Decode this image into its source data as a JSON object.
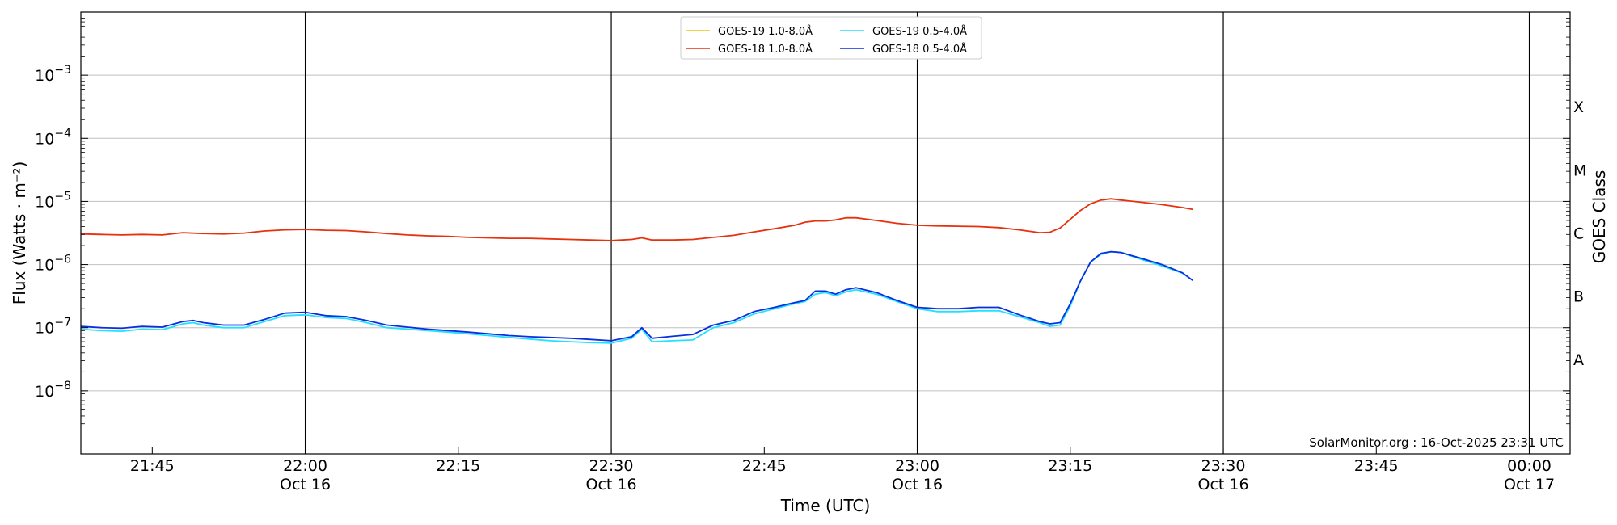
{
  "chart_data": {
    "type": "line",
    "xlabel": "Time (UTC)",
    "ylabel": "Flux (Watts · m⁻²)",
    "y2label": "GOES Class",
    "yscale": "log",
    "xlim": [
      "21:38",
      "24:04"
    ],
    "ylim": [
      1e-09,
      0.01
    ],
    "grid": "horizontal",
    "legend_position": "top-center",
    "credit": "SolarMonitor.org : 16-Oct-2025 23:31 UTC",
    "x_ticks": [
      {
        "time": "21:45",
        "label": "21:45",
        "date": ""
      },
      {
        "time": "22:00",
        "label": "22:00",
        "date": "Oct 16"
      },
      {
        "time": "22:15",
        "label": "22:15",
        "date": ""
      },
      {
        "time": "22:30",
        "label": "22:30",
        "date": "Oct 16"
      },
      {
        "time": "22:45",
        "label": "22:45",
        "date": ""
      },
      {
        "time": "23:00",
        "label": "23:00",
        "date": "Oct 16"
      },
      {
        "time": "23:15",
        "label": "23:15",
        "date": ""
      },
      {
        "time": "23:30",
        "label": "23:30",
        "date": "Oct 16"
      },
      {
        "time": "23:45",
        "label": "23:45",
        "date": ""
      },
      {
        "time": "24:00",
        "label": "00:00",
        "date": "Oct 17"
      }
    ],
    "day_lines": [
      "22:00",
      "22:30",
      "23:00",
      "23:30",
      "24:00"
    ],
    "y_ticks": [
      {
        "value": 1e-08,
        "label": "10",
        "exp": "−8"
      },
      {
        "value": 1e-07,
        "label": "10",
        "exp": "−7"
      },
      {
        "value": 1e-06,
        "label": "10",
        "exp": "−6"
      },
      {
        "value": 1e-05,
        "label": "10",
        "exp": "−5"
      },
      {
        "value": 0.0001,
        "label": "10",
        "exp": "−4"
      },
      {
        "value": 0.001,
        "label": "10",
        "exp": "−3"
      }
    ],
    "goes_classes": [
      {
        "label": "A",
        "value": 3.16e-08
      },
      {
        "label": "B",
        "value": 3.16e-07
      },
      {
        "label": "C",
        "value": 3.16e-06
      },
      {
        "label": "M",
        "value": 3.16e-05
      },
      {
        "label": "X",
        "value": 0.000316
      }
    ],
    "series": [
      {
        "name": "GOES-19 1.0-8.0Å",
        "color": "#f2c300",
        "values": []
      },
      {
        "name": "GOES-18 1.0-8.0Å",
        "color": "#e8300c",
        "x": [
          "21:38",
          "21:40",
          "21:42",
          "21:44",
          "21:46",
          "21:48",
          "21:50",
          "21:52",
          "21:54",
          "21:56",
          "21:58",
          "22:00",
          "22:02",
          "22:04",
          "22:06",
          "22:08",
          "22:10",
          "22:12",
          "22:14",
          "22:16",
          "22:18",
          "22:20",
          "22:22",
          "22:24",
          "22:26",
          "22:28",
          "22:30",
          "22:32",
          "22:33",
          "22:34",
          "22:36",
          "22:38",
          "22:40",
          "22:42",
          "22:44",
          "22:46",
          "22:48",
          "22:49",
          "22:50",
          "22:51",
          "22:52",
          "22:53",
          "22:54",
          "22:56",
          "22:58",
          "23:00",
          "23:02",
          "23:04",
          "23:06",
          "23:08",
          "23:10",
          "23:12",
          "23:13",
          "23:14",
          "23:15",
          "23:16",
          "23:17",
          "23:18",
          "23:19",
          "23:20",
          "23:22",
          "23:24",
          "23:26",
          "23:27"
        ],
        "values": [
          3.05e-06,
          3e-06,
          2.95e-06,
          3e-06,
          2.95e-06,
          3.2e-06,
          3.1e-06,
          3.05e-06,
          3.15e-06,
          3.4e-06,
          3.55e-06,
          3.6e-06,
          3.5e-06,
          3.45e-06,
          3.3e-06,
          3.1e-06,
          2.95e-06,
          2.85e-06,
          2.8e-06,
          2.7e-06,
          2.65e-06,
          2.6e-06,
          2.6e-06,
          2.55e-06,
          2.5e-06,
          2.45e-06,
          2.4e-06,
          2.5e-06,
          2.65e-06,
          2.45e-06,
          2.45e-06,
          2.5e-06,
          2.7e-06,
          2.9e-06,
          3.3e-06,
          3.7e-06,
          4.2e-06,
          4.7e-06,
          4.9e-06,
          4.9e-06,
          5.1e-06,
          5.5e-06,
          5.5e-06,
          5e-06,
          4.5e-06,
          4.2e-06,
          4.1e-06,
          4.05e-06,
          4e-06,
          3.85e-06,
          3.55e-06,
          3.2e-06,
          3.25e-06,
          3.8e-06,
          5.2e-06,
          7.2e-06,
          9.2e-06,
          1.05e-05,
          1.1e-05,
          1.05e-05,
          9.7e-06,
          8.9e-06,
          8e-06,
          7.5e-06
        ]
      },
      {
        "name": "GOES-19 0.5-4.0Å",
        "color": "#22e0ff",
        "x": [
          "21:38",
          "21:40",
          "21:42",
          "21:44",
          "21:46",
          "21:48",
          "21:49",
          "21:50",
          "21:52",
          "21:54",
          "21:56",
          "21:58",
          "22:00",
          "22:02",
          "22:04",
          "22:06",
          "22:08",
          "22:10",
          "22:12",
          "22:14",
          "22:16",
          "22:18",
          "22:20",
          "22:22",
          "22:24",
          "22:26",
          "22:28",
          "22:30",
          "22:32",
          "22:33",
          "22:34",
          "22:36",
          "22:38",
          "22:40",
          "22:42",
          "22:44",
          "22:46",
          "22:48",
          "22:49",
          "22:50",
          "22:51",
          "22:52",
          "22:53",
          "22:54",
          "22:56",
          "22:58",
          "23:00",
          "23:02",
          "23:04",
          "23:06",
          "23:08",
          "23:10",
          "23:12",
          "23:13",
          "23:14",
          "23:15",
          "23:16",
          "23:17",
          "23:18",
          "23:19",
          "23:20",
          "23:22",
          "23:24",
          "23:26",
          "23:27"
        ],
        "values": [
          9.5e-08,
          9e-08,
          8.8e-08,
          9.5e-08,
          9.3e-08,
          1.15e-07,
          1.2e-07,
          1.1e-07,
          1e-07,
          1e-07,
          1.25e-07,
          1.55e-07,
          1.6e-07,
          1.45e-07,
          1.4e-07,
          1.2e-07,
          1e-07,
          9.5e-08,
          9e-08,
          8.5e-08,
          8e-08,
          7.5e-08,
          7e-08,
          6.6e-08,
          6.2e-08,
          6e-08,
          5.8e-08,
          5.7e-08,
          6.8e-08,
          9.5e-08,
          6e-08,
          6.2e-08,
          6.4e-08,
          1e-07,
          1.2e-07,
          1.65e-07,
          2e-07,
          2.4e-07,
          2.6e-07,
          3.4e-07,
          3.6e-07,
          3.2e-07,
          3.7e-07,
          4e-07,
          3.4e-07,
          2.6e-07,
          2e-07,
          1.8e-07,
          1.8e-07,
          1.85e-07,
          1.85e-07,
          1.5e-07,
          1.2e-07,
          1.05e-07,
          1.1e-07,
          2.2e-07,
          5.5e-07,
          1.1e-06,
          1.45e-06,
          1.6e-06,
          1.55e-06,
          1.2e-06,
          9.5e-07,
          7.3e-07,
          5.6e-07
        ]
      },
      {
        "name": "GOES-18 0.5-4.0Å",
        "color": "#0a2fe0",
        "x": [
          "21:38",
          "21:40",
          "21:42",
          "21:44",
          "21:46",
          "21:48",
          "21:49",
          "21:50",
          "21:52",
          "21:54",
          "21:56",
          "21:58",
          "22:00",
          "22:02",
          "22:04",
          "22:06",
          "22:08",
          "22:10",
          "22:12",
          "22:14",
          "22:16",
          "22:18",
          "22:20",
          "22:22",
          "22:24",
          "22:26",
          "22:28",
          "22:30",
          "22:32",
          "22:33",
          "22:34",
          "22:36",
          "22:38",
          "22:40",
          "22:42",
          "22:44",
          "22:46",
          "22:48",
          "22:49",
          "22:50",
          "22:51",
          "22:52",
          "22:53",
          "22:54",
          "22:56",
          "22:58",
          "23:00",
          "23:02",
          "23:04",
          "23:06",
          "23:08",
          "23:10",
          "23:12",
          "23:13",
          "23:14",
          "23:15",
          "23:16",
          "23:17",
          "23:18",
          "23:19",
          "23:20",
          "23:22",
          "23:24",
          "23:26",
          "23:27"
        ],
        "values": [
          1.05e-07,
          1e-07,
          9.8e-08,
          1.05e-07,
          1.02e-07,
          1.25e-07,
          1.3e-07,
          1.2e-07,
          1.1e-07,
          1.1e-07,
          1.35e-07,
          1.7e-07,
          1.75e-07,
          1.55e-07,
          1.5e-07,
          1.3e-07,
          1.1e-07,
          1.02e-07,
          9.5e-08,
          9e-08,
          8.5e-08,
          8e-08,
          7.5e-08,
          7.2e-08,
          7e-08,
          6.8e-08,
          6.5e-08,
          6.2e-08,
          7.2e-08,
          1e-07,
          6.8e-08,
          7.3e-08,
          7.8e-08,
          1.1e-07,
          1.3e-07,
          1.8e-07,
          2.1e-07,
          2.5e-07,
          2.7e-07,
          3.8e-07,
          3.8e-07,
          3.4e-07,
          4e-07,
          4.3e-07,
          3.6e-07,
          2.7e-07,
          2.1e-07,
          2e-07,
          2e-07,
          2.1e-07,
          2.1e-07,
          1.6e-07,
          1.25e-07,
          1.15e-07,
          1.2e-07,
          2.4e-07,
          5.5e-07,
          1.1e-06,
          1.5e-06,
          1.6e-06,
          1.55e-06,
          1.25e-06,
          1e-06,
          7.4e-07,
          5.6e-07
        ]
      }
    ]
  }
}
